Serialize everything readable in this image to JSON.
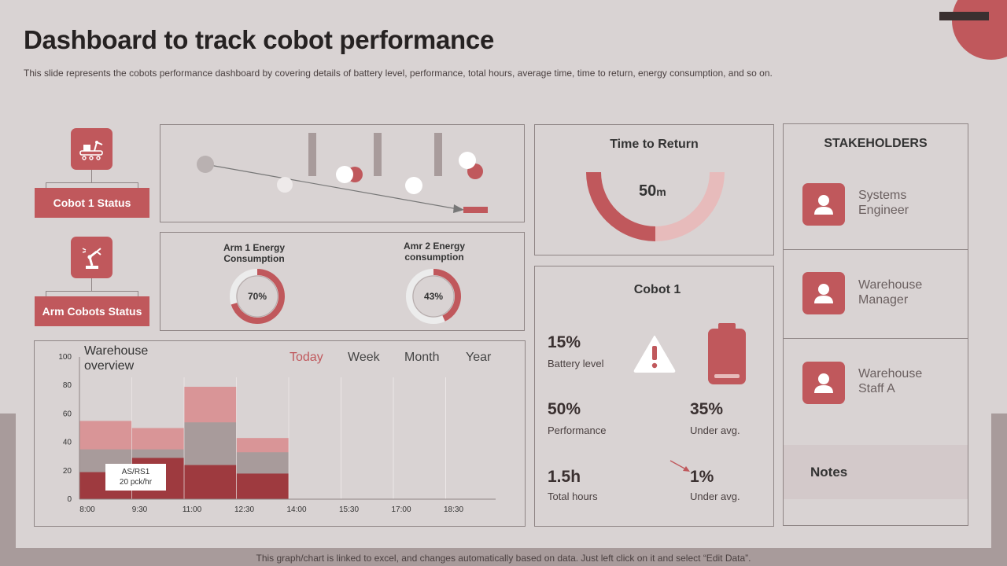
{
  "header": {
    "title": "Dashboard to track cobot performance",
    "subtitle": "This slide represents the cobots performance dashboard by covering details of battery level,  performance, total hours, average time, time to  return, energy consumption, and so on."
  },
  "footer": {
    "note": "This graph/chart is linked to excel,  and changes automatically based on data. Just left click on it and select “Edit Data”."
  },
  "status": {
    "cobot1_label": "Cobot 1 Status",
    "arm_label": "Arm Cobots Status"
  },
  "energy": {
    "arm1": {
      "title_line1": "Arm 1 Energy",
      "title_line2": "Consumption",
      "percent": 70,
      "label": "70%"
    },
    "amr2": {
      "title_line1": "Amr 2 Energy",
      "title_line2": "consumption",
      "percent": 43,
      "label": "43%"
    }
  },
  "time_to_return": {
    "title": "Time to Return",
    "value": "50",
    "unit": "m"
  },
  "cobot1": {
    "title": "Cobot 1",
    "battery_value": "15%",
    "battery_label": "Battery level",
    "performance_value": "50%",
    "performance_label": "Performance",
    "under_avg_value": "35%",
    "under_avg_label": "Under avg.",
    "total_hours_value": "1.5h",
    "total_hours_label": "Total hours",
    "under_avg2_value": "1%",
    "under_avg2_label": "Under avg."
  },
  "stakeholders": {
    "title": "STAKEHOLDERS",
    "items": [
      {
        "line1": "Systems",
        "line2": "Engineer"
      },
      {
        "line1": "Warehouse",
        "line2": "Manager"
      },
      {
        "line1": "Warehouse",
        "line2": "Staff A"
      }
    ],
    "notes_label": "Notes"
  },
  "warehouse": {
    "title_line1": "Warehouse",
    "title_line2": "overview",
    "tabs": [
      "Today",
      "Week",
      "Month",
      "Year"
    ],
    "active_tab": "Today",
    "callout_line1": "AS/RS1",
    "callout_line2": "20 pck/hr"
  },
  "colors": {
    "accent": "#c0585c",
    "accent_light": "#e7bbbb",
    "background": "#d9d3d3",
    "dark": "#3a3030"
  },
  "chart_data": {
    "type": "area",
    "title": "",
    "x_ticks": [
      "8:00",
      "9:30",
      "11:00",
      "12:30",
      "14:00",
      "15:30",
      "17:00",
      "18:30"
    ],
    "ylim": [
      0,
      100
    ],
    "y_ticks": [
      0,
      20,
      40,
      60,
      80,
      100
    ],
    "step_x": [
      "8:00",
      "9:30",
      "11:00",
      "12:30",
      "14:00"
    ],
    "series": [
      {
        "color": "#9e3a3f",
        "values": [
          19,
          29,
          24,
          18
        ]
      },
      {
        "color": "#a89b9b",
        "values": [
          35,
          35,
          54,
          33
        ]
      },
      {
        "color": "#d99597",
        "values": [
          55,
          50,
          79,
          43
        ]
      }
    ],
    "grid": true
  }
}
